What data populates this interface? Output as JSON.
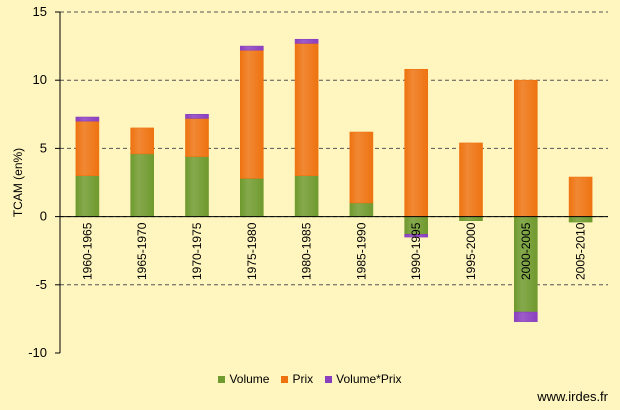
{
  "chart_data": {
    "type": "bar",
    "stacked": true,
    "categories": [
      "1960-1965",
      "1965-1970",
      "1970-1975",
      "1975-1980",
      "1980-1985",
      "1985-1990",
      "1990-1995",
      "1995-2000",
      "2000-2005",
      "2005-2010"
    ],
    "series": [
      {
        "name": "Volume",
        "color": "#6F9A2E",
        "values": [
          3.0,
          4.6,
          4.4,
          2.8,
          3.0,
          1.0,
          -1.3,
          -0.3,
          -7.0,
          -0.4
        ]
      },
      {
        "name": "Prix",
        "color": "#EE7310",
        "values": [
          4.0,
          1.9,
          2.8,
          9.4,
          9.7,
          5.2,
          10.8,
          5.4,
          10.0,
          2.9
        ]
      },
      {
        "name": "Volume*Prix",
        "color": "#8B3FBF",
        "values": [
          0.3,
          0.0,
          0.3,
          0.3,
          0.3,
          0.0,
          -0.2,
          0.0,
          -0.7,
          0.0
        ]
      }
    ],
    "ylabel": "TCAM (en%)",
    "xlabel": "",
    "ylim": [
      -10,
      15
    ],
    "yticks": [
      15,
      10,
      5,
      0,
      -5,
      -10
    ],
    "grid": true,
    "legend_position": "bottom"
  },
  "watermark": "www.irdes.fr"
}
